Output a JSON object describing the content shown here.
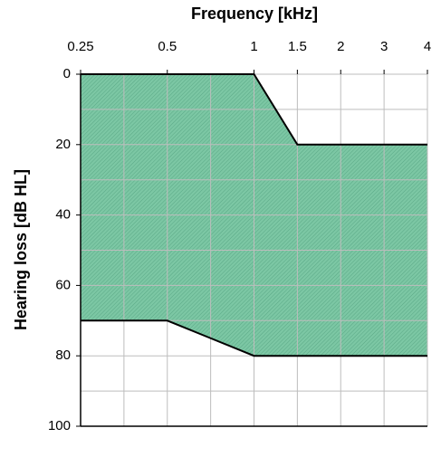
{
  "chart_data": {
    "type": "area",
    "xlabel": "Frequency [kHz]",
    "ylabel": "Hearing loss [dB HL]",
    "categories": [
      "0.25",
      null,
      "0.5",
      null,
      "1",
      "1.5",
      "2",
      "3",
      "4"
    ],
    "category_positions": [
      0,
      0.5,
      1,
      1.5,
      2,
      2.5,
      3,
      3.5,
      4
    ],
    "upper_values": [
      0,
      0,
      0,
      0,
      0,
      20,
      20,
      20,
      20
    ],
    "lower_values": [
      70,
      70,
      70,
      75,
      80,
      80,
      80,
      80,
      80
    ],
    "color": "#7cc7a4",
    "line_color": "#000000",
    "ylim": [
      0,
      100
    ],
    "yticks": [
      0,
      20,
      40,
      60,
      80,
      100
    ],
    "y_minor_ticks": [
      10,
      30,
      50,
      70,
      90
    ],
    "y_inverted": true,
    "grid": true
  }
}
